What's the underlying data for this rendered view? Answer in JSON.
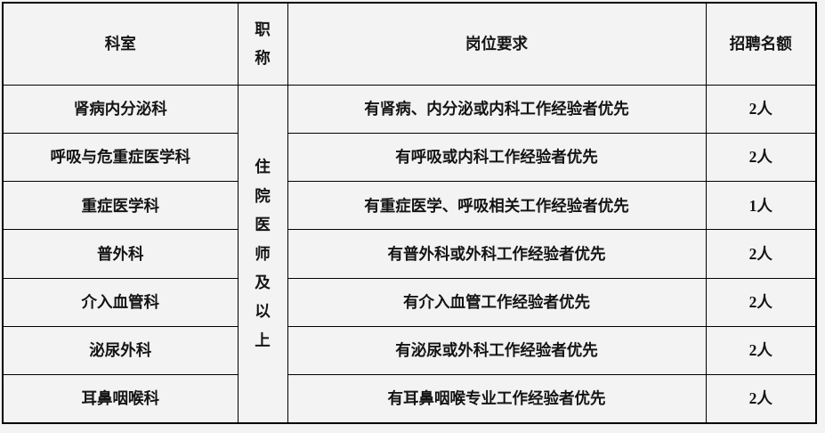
{
  "table": {
    "headers": {
      "department": "科室",
      "title": "职称",
      "requirement": "岗位要求",
      "quota": "招聘名额"
    },
    "merged_title_cell": "住院医师及以上",
    "rows": [
      {
        "department": "肾病内分泌科",
        "requirement": "有肾病、内分泌或内科工作经验者优先",
        "quota": "2人"
      },
      {
        "department": "呼吸与危重症医学科",
        "requirement": "有呼吸或内科工作经验者优先",
        "quota": "2人"
      },
      {
        "department": "重症医学科",
        "requirement": "有重症医学、呼吸相关工作经验者优先",
        "quota": "1人"
      },
      {
        "department": "普外科",
        "requirement": "有普外科或外科工作经验者优先",
        "quota": "2人"
      },
      {
        "department": "介入血管科",
        "requirement": "有介入血管工作经验者优先",
        "quota": "2人"
      },
      {
        "department": "泌尿外科",
        "requirement": "有泌尿或外科工作经验者优先",
        "quota": "2人"
      },
      {
        "department": "耳鼻咽喉科",
        "requirement": "有耳鼻咽喉专业工作经验者优先",
        "quota": "2人"
      }
    ],
    "colors": {
      "background": "#f2f3f2",
      "border": "#000000",
      "text": "#141414"
    }
  }
}
